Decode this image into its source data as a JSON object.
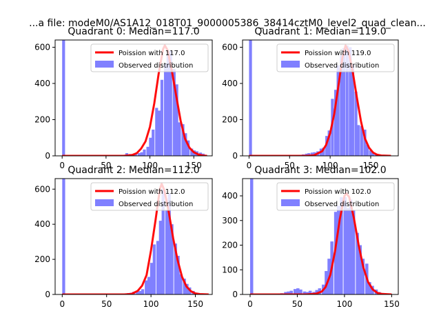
{
  "figure": {
    "suptitle": "...a file: modeM0/AS1A12_018T01_9000005386_38414cztM0_level2_quad_clean..."
  },
  "colors": {
    "observed": "#8080ff",
    "poisson": "#ff0000"
  },
  "chart_data": [
    {
      "type": "bar",
      "title": "Quadrant 0: Median=117.0",
      "xlabel": "",
      "ylabel": "",
      "xlim": [
        -8,
        171
      ],
      "ylim": [
        0,
        640
      ],
      "xticks": [
        0,
        50,
        100,
        150
      ],
      "yticks": [
        0,
        200,
        400,
        600
      ],
      "bin_width": 3.3,
      "legend": {
        "placement": "top-right",
        "entries": [
          "Poission with 117.0",
          "Observed distribution"
        ]
      },
      "series": [
        {
          "name": "Observed distribution",
          "kind": "hist",
          "x": [
            0,
            66,
            69,
            72,
            76,
            79,
            82,
            86,
            89,
            92,
            96,
            99,
            102,
            106,
            109,
            112,
            116,
            119,
            122,
            126,
            129,
            132,
            136,
            139,
            142,
            146,
            149,
            152,
            156,
            159,
            162
          ],
          "values": [
            640,
            3,
            5,
            15,
            10,
            8,
            12,
            15,
            20,
            35,
            50,
            100,
            145,
            265,
            250,
            420,
            510,
            560,
            580,
            480,
            395,
            185,
            175,
            125,
            85,
            40,
            30,
            25,
            18,
            12,
            5
          ]
        },
        {
          "name": "Poission with 117.0",
          "kind": "line",
          "x": [
            0,
            70,
            80,
            85,
            90,
            95,
            100,
            105,
            110,
            115,
            117,
            120,
            125,
            130,
            135,
            140,
            145,
            150,
            155,
            160,
            165
          ],
          "values": [
            0,
            0,
            5,
            15,
            40,
            80,
            160,
            290,
            455,
            590,
            610,
            585,
            470,
            330,
            195,
            95,
            45,
            20,
            8,
            2,
            0
          ]
        }
      ]
    },
    {
      "type": "bar",
      "title": "Quadrant 1: Median=119.0",
      "xlabel": "",
      "ylabel": "",
      "xlim": [
        -8,
        184
      ],
      "ylim": [
        0,
        640
      ],
      "xticks": [
        0,
        50,
        100,
        150
      ],
      "yticks": [
        0,
        200,
        400,
        600
      ],
      "bin_width": 3.6,
      "legend": {
        "placement": "top-right",
        "entries": [
          "Poission with 119.0",
          "Observed distribution"
        ]
      },
      "series": [
        {
          "name": "Observed distribution",
          "kind": "hist",
          "x": [
            0,
            58,
            61,
            65,
            69,
            72,
            76,
            79,
            83,
            87,
            90,
            94,
            97,
            101,
            105,
            108,
            112,
            115,
            119,
            123,
            126,
            130,
            133,
            137,
            141,
            144,
            148,
            151,
            155
          ],
          "values": [
            640,
            3,
            5,
            8,
            12,
            15,
            18,
            20,
            25,
            40,
            45,
            110,
            140,
            315,
            365,
            500,
            555,
            595,
            610,
            600,
            505,
            355,
            170,
            165,
            145,
            60,
            30,
            15,
            10
          ]
        },
        {
          "name": "Poission with 119.0",
          "kind": "line",
          "x": [
            0,
            70,
            80,
            90,
            95,
            100,
            105,
            110,
            115,
            119,
            123,
            128,
            133,
            138,
            143,
            148,
            153,
            158,
            163,
            175
          ],
          "values": [
            0,
            0,
            3,
            25,
            60,
            125,
            230,
            380,
            540,
            610,
            575,
            460,
            320,
            190,
            95,
            45,
            18,
            6,
            2,
            0
          ]
        }
      ]
    },
    {
      "type": "bar",
      "title": "Quadrant 2: Median=112.0",
      "xlabel": "",
      "ylabel": "",
      "xlim": [
        -8,
        169
      ],
      "ylim": [
        0,
        660
      ],
      "xticks": [
        0,
        50,
        100,
        150
      ],
      "yticks": [
        0,
        200,
        400,
        600
      ],
      "bin_width": 3.3,
      "legend": {
        "placement": "top-right",
        "entries": [
          "Poission with 112.0",
          "Observed distribution"
        ]
      },
      "series": [
        {
          "name": "Observed distribution",
          "kind": "hist",
          "x": [
            0,
            66,
            69,
            73,
            76,
            79,
            83,
            86,
            89,
            93,
            96,
            99,
            102,
            106,
            109,
            112,
            116,
            119,
            122,
            126,
            129,
            132,
            136,
            139,
            142,
            146,
            149,
            152,
            155,
            159
          ],
          "values": [
            660,
            3,
            5,
            8,
            10,
            15,
            15,
            20,
            30,
            80,
            100,
            180,
            285,
            305,
            420,
            600,
            480,
            575,
            400,
            290,
            220,
            115,
            90,
            60,
            40,
            20,
            10,
            5,
            3,
            2
          ]
        },
        {
          "name": "Poission with 112.0",
          "kind": "line",
          "x": [
            0,
            70,
            78,
            85,
            90,
            95,
            100,
            105,
            110,
            112,
            115,
            120,
            125,
            130,
            135,
            140,
            145,
            150,
            155,
            165
          ],
          "values": [
            0,
            0,
            3,
            20,
            50,
            110,
            250,
            420,
            600,
            630,
            595,
            470,
            320,
            195,
            100,
            45,
            18,
            6,
            2,
            0
          ]
        }
      ]
    },
    {
      "type": "bar",
      "title": "Quadrant 3: Median=102.0",
      "xlabel": "",
      "ylabel": "",
      "xlim": [
        -8,
        157
      ],
      "ylim": [
        0,
        470
      ],
      "xticks": [
        0,
        50,
        100,
        150
      ],
      "yticks": [
        0,
        100,
        200,
        300,
        400
      ],
      "bin_width": 3.3,
      "legend": {
        "placement": "top-right",
        "entries": [
          "Poission with 102.0",
          "Observed distribution"
        ]
      },
      "series": [
        {
          "name": "Observed distribution",
          "kind": "hist",
          "x": [
            0,
            29,
            32,
            36,
            39,
            42,
            46,
            49,
            52,
            56,
            59,
            62,
            66,
            69,
            72,
            76,
            79,
            82,
            85,
            89,
            92,
            95,
            99,
            102,
            105,
            108,
            112,
            115,
            118,
            122,
            125,
            128,
            132,
            135,
            138
          ],
          "values": [
            470,
            3,
            5,
            10,
            12,
            15,
            22,
            25,
            20,
            12,
            10,
            15,
            10,
            18,
            25,
            40,
            95,
            145,
            215,
            335,
            360,
            395,
            395,
            350,
            385,
            340,
            250,
            200,
            145,
            125,
            50,
            35,
            20,
            10,
            5
          ]
        },
        {
          "name": "Poission with 102.0",
          "kind": "line",
          "x": [
            0,
            60,
            70,
            76,
            80,
            85,
            90,
            95,
            100,
            102,
            105,
            110,
            115,
            120,
            125,
            130,
            135,
            140,
            150
          ],
          "values": [
            0,
            0,
            3,
            12,
            30,
            80,
            175,
            305,
            400,
            410,
            395,
            310,
            200,
            110,
            50,
            20,
            6,
            2,
            0
          ]
        }
      ]
    }
  ]
}
